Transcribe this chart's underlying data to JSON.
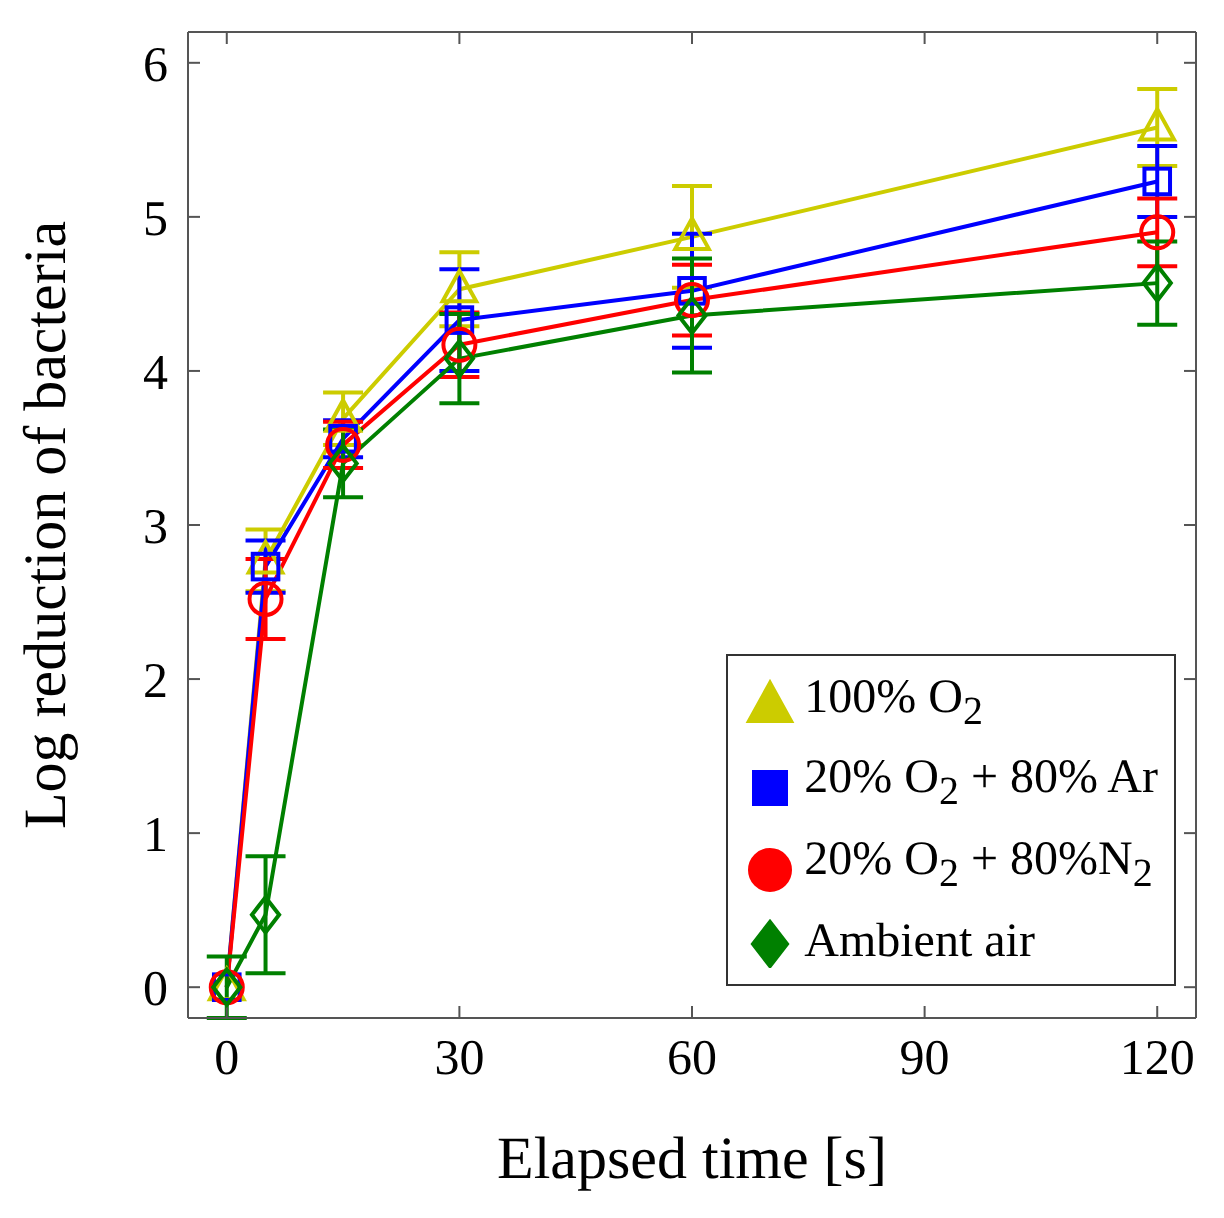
{
  "chart_data": {
    "type": "line",
    "xlabel": "Elapsed time [s]",
    "ylabel": "Log reduction of bacteria",
    "x": [
      0,
      5,
      15,
      30,
      60,
      120
    ],
    "xlim": [
      -5,
      125
    ],
    "xticks": [
      0,
      30,
      60,
      90,
      120
    ],
    "ylim": [
      -0.2,
      6.2
    ],
    "yticks": [
      0,
      1,
      2,
      3,
      4,
      5,
      6
    ],
    "grid": false,
    "legend": "bottom right",
    "series": [
      {
        "name": "100% O$_{2}$",
        "color": "#cccc00",
        "marker": "triangle",
        "values": [
          0,
          2.77,
          3.69,
          4.53,
          4.87,
          5.58
        ],
        "errors": [
          null,
          0.2,
          0.17,
          0.24,
          0.33,
          0.25
        ]
      },
      {
        "name": "20% O$_{2}$ + 80% Ar",
        "color": "#0000ff",
        "marker": "square",
        "values": [
          0,
          2.73,
          3.56,
          4.33,
          4.52,
          5.23
        ],
        "errors": [
          null,
          0.17,
          0.12,
          0.33,
          0.37,
          0.23
        ]
      },
      {
        "name": "20% O$_{2}$ + 80%N$_{2}$",
        "color": "#ff0000",
        "marker": "circle",
        "values": [
          0,
          2.52,
          3.52,
          4.17,
          4.46,
          4.9
        ],
        "errors": [
          null,
          0.26,
          0.15,
          0.21,
          0.23,
          0.22
        ]
      },
      {
        "name": "Ambient air",
        "color": "#008000",
        "marker": "diamond",
        "values": [
          0,
          0.47,
          3.4,
          4.08,
          4.36,
          4.57
        ],
        "errors": [
          0.2,
          0.38,
          0.22,
          0.29,
          0.37,
          0.27
        ]
      }
    ]
  }
}
